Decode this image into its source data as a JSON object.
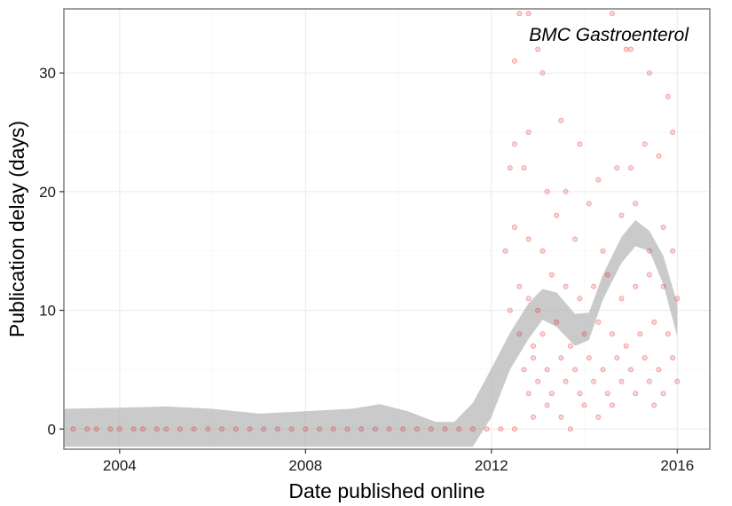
{
  "chart_data": {
    "type": "scatter",
    "title": "BMC Gastroenterol",
    "xlabel": "Date published online",
    "ylabel": "Publication delay (days)",
    "x_ticks": [
      2004,
      2008,
      2012,
      2016
    ],
    "y_ticks": [
      0,
      10,
      20,
      30
    ],
    "xlim": [
      2002.8,
      2016.7
    ],
    "ylim": [
      -1.7,
      35.4
    ],
    "grid": true,
    "point_color": "#e41a1c",
    "smooth_band_color": "#b3b3b3",
    "series": [
      {
        "type": "scatter",
        "points": [
          [
            2003.0,
            0
          ],
          [
            2003.3,
            0
          ],
          [
            2003.5,
            0
          ],
          [
            2003.8,
            0
          ],
          [
            2004.0,
            0
          ],
          [
            2004.3,
            0
          ],
          [
            2004.5,
            0
          ],
          [
            2004.8,
            0
          ],
          [
            2005.0,
            0
          ],
          [
            2005.3,
            0
          ],
          [
            2005.6,
            0
          ],
          [
            2005.9,
            0
          ],
          [
            2006.2,
            0
          ],
          [
            2006.5,
            0
          ],
          [
            2006.8,
            0
          ],
          [
            2007.1,
            0
          ],
          [
            2007.4,
            0
          ],
          [
            2007.7,
            0
          ],
          [
            2008.0,
            0
          ],
          [
            2008.3,
            0
          ],
          [
            2008.6,
            0
          ],
          [
            2008.9,
            0
          ],
          [
            2009.2,
            0
          ],
          [
            2009.5,
            0
          ],
          [
            2009.8,
            0
          ],
          [
            2010.1,
            0
          ],
          [
            2010.4,
            0
          ],
          [
            2010.7,
            0
          ],
          [
            2011.0,
            0
          ],
          [
            2011.3,
            0
          ],
          [
            2011.6,
            0
          ],
          [
            2011.9,
            0
          ],
          [
            2012.2,
            0
          ],
          [
            2012.5,
            0
          ],
          [
            2012.5,
            31
          ],
          [
            2012.6,
            35
          ],
          [
            2012.8,
            35
          ],
          [
            2013.0,
            32
          ],
          [
            2013.1,
            30
          ],
          [
            2013.5,
            26
          ],
          [
            2014.6,
            35
          ],
          [
            2014.9,
            32
          ],
          [
            2015.0,
            32
          ],
          [
            2015.4,
            30
          ],
          [
            2015.8,
            28
          ],
          [
            2012.4,
            22
          ],
          [
            2012.5,
            24
          ],
          [
            2012.7,
            22
          ],
          [
            2012.8,
            25
          ],
          [
            2013.2,
            20
          ],
          [
            2013.6,
            20
          ],
          [
            2013.9,
            24
          ],
          [
            2014.3,
            21
          ],
          [
            2014.7,
            22
          ],
          [
            2015.0,
            22
          ],
          [
            2015.3,
            24
          ],
          [
            2015.6,
            23
          ],
          [
            2015.9,
            25
          ],
          [
            2012.3,
            15
          ],
          [
            2012.5,
            17
          ],
          [
            2012.8,
            16
          ],
          [
            2013.1,
            15
          ],
          [
            2013.4,
            18
          ],
          [
            2013.8,
            16
          ],
          [
            2014.1,
            19
          ],
          [
            2014.4,
            15
          ],
          [
            2014.8,
            18
          ],
          [
            2015.1,
            19
          ],
          [
            2015.4,
            15
          ],
          [
            2015.7,
            17
          ],
          [
            2015.9,
            15
          ],
          [
            2012.4,
            10
          ],
          [
            2012.6,
            12
          ],
          [
            2012.8,
            11
          ],
          [
            2013.0,
            10
          ],
          [
            2013.3,
            13
          ],
          [
            2013.6,
            12
          ],
          [
            2013.9,
            11
          ],
          [
            2014.2,
            12
          ],
          [
            2014.5,
            13
          ],
          [
            2014.8,
            11
          ],
          [
            2015.1,
            12
          ],
          [
            2015.4,
            13
          ],
          [
            2015.7,
            12
          ],
          [
            2016.0,
            11
          ],
          [
            2012.6,
            8
          ],
          [
            2012.9,
            7
          ],
          [
            2013.1,
            8
          ],
          [
            2013.4,
            9
          ],
          [
            2013.7,
            7
          ],
          [
            2014.0,
            8
          ],
          [
            2014.3,
            9
          ],
          [
            2014.6,
            8
          ],
          [
            2014.9,
            7
          ],
          [
            2015.2,
            8
          ],
          [
            2015.5,
            9
          ],
          [
            2015.8,
            8
          ],
          [
            2012.7,
            5
          ],
          [
            2012.9,
            6
          ],
          [
            2013.2,
            5
          ],
          [
            2013.5,
            6
          ],
          [
            2013.8,
            5
          ],
          [
            2014.1,
            6
          ],
          [
            2014.4,
            5
          ],
          [
            2014.7,
            6
          ],
          [
            2015.0,
            5
          ],
          [
            2015.3,
            6
          ],
          [
            2015.6,
            5
          ],
          [
            2015.9,
            6
          ],
          [
            2012.8,
            3
          ],
          [
            2013.0,
            4
          ],
          [
            2013.3,
            3
          ],
          [
            2013.6,
            4
          ],
          [
            2013.9,
            3
          ],
          [
            2014.2,
            4
          ],
          [
            2014.5,
            3
          ],
          [
            2014.8,
            4
          ],
          [
            2015.1,
            3
          ],
          [
            2015.4,
            4
          ],
          [
            2015.7,
            3
          ],
          [
            2016.0,
            4
          ],
          [
            2012.9,
            1
          ],
          [
            2013.2,
            2
          ],
          [
            2013.5,
            1
          ],
          [
            2013.7,
            0
          ],
          [
            2014.0,
            2
          ],
          [
            2014.3,
            1
          ],
          [
            2014.6,
            2
          ],
          [
            2015.5,
            2
          ]
        ]
      },
      {
        "type": "smooth_ribbon",
        "x": [
          2002.8,
          2004.0,
          2005.0,
          2006.0,
          2007.0,
          2008.0,
          2009.0,
          2009.6,
          2010.2,
          2010.8,
          2011.2,
          2011.6,
          2012.0,
          2012.4,
          2012.8,
          2013.1,
          2013.4,
          2013.8,
          2014.1,
          2014.4,
          2014.8,
          2015.1,
          2015.4,
          2015.7,
          2016.0
        ],
        "upper": [
          1.7,
          1.8,
          1.9,
          1.7,
          1.3,
          1.5,
          1.7,
          2.1,
          1.5,
          0.6,
          0.6,
          2.2,
          5.1,
          8.1,
          10.6,
          11.8,
          11.5,
          9.7,
          9.8,
          13.0,
          16.2,
          17.6,
          16.7,
          14.6,
          10.6
        ],
        "lower": [
          -1.5,
          -1.5,
          -1.5,
          -1.5,
          -1.5,
          -1.5,
          -1.5,
          -1.5,
          -1.5,
          -1.5,
          -1.5,
          -1.5,
          1.0,
          5.0,
          7.6,
          9.2,
          8.6,
          7.0,
          7.5,
          10.9,
          14.0,
          15.4,
          15.0,
          12.2,
          7.8
        ]
      }
    ]
  }
}
